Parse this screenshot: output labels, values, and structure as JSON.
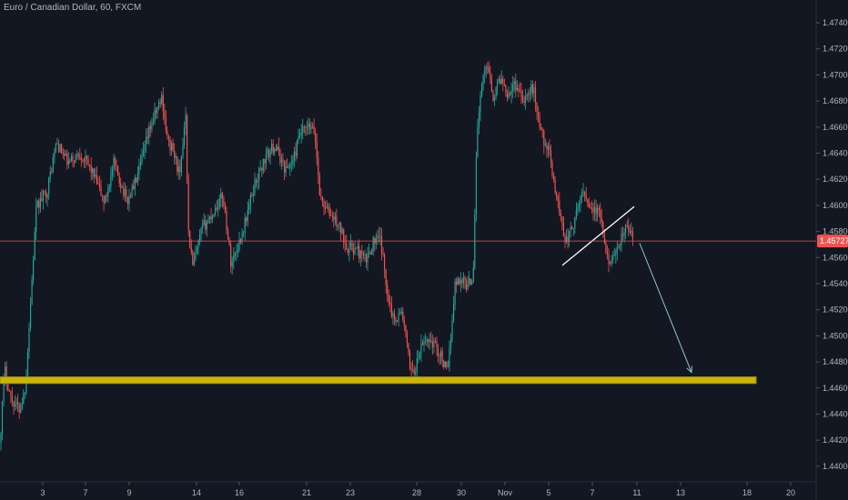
{
  "header": {
    "title": "Euro / Canadian Dollar, 60, FXCM"
  },
  "colors": {
    "background": "#131722",
    "up_candle": "#26a69a",
    "down_candle": "#ef5350",
    "support_zone": "#c9b30f",
    "arrow": "#90c7d4",
    "trendline": "#ffffff",
    "current_price_line": "#ef5350",
    "axis_text": "#b2b5be"
  },
  "chart_data": {
    "type": "candlestick",
    "title": "Euro / Canadian Dollar, 60, FXCM",
    "x_tick_labels": [
      "3",
      "7",
      "9",
      "14",
      "16",
      "21",
      "23",
      "28",
      "30",
      "Nov",
      "5",
      "7",
      "11",
      "13",
      "18",
      "20"
    ],
    "y_tick_labels": [
      "1.47400",
      "1.47200",
      "1.47000",
      "1.46800",
      "1.46600",
      "1.46400",
      "1.46200",
      "1.46000",
      "1.45800",
      "1.45600",
      "1.45400",
      "1.45200",
      "1.45000",
      "1.44800",
      "1.44600",
      "1.44400",
      "1.44200",
      "1.44000"
    ],
    "ylim": [
      1.4385,
      1.4754
    ],
    "current_price": 1.45727,
    "current_price_label": "1.45727",
    "price_path": [
      [
        0,
        1.4418
      ],
      [
        5,
        1.4475
      ],
      [
        12,
        1.4452
      ],
      [
        22,
        1.4443
      ],
      [
        28,
        1.4462
      ],
      [
        40,
        1.4598
      ],
      [
        52,
        1.4612
      ],
      [
        62,
        1.4648
      ],
      [
        75,
        1.4632
      ],
      [
        88,
        1.464
      ],
      [
        100,
        1.4628
      ],
      [
        115,
        1.4602
      ],
      [
        125,
        1.4632
      ],
      [
        140,
        1.4603
      ],
      [
        152,
        1.4624
      ],
      [
        165,
        1.466
      ],
      [
        178,
        1.4683
      ],
      [
        184,
        1.465
      ],
      [
        190,
        1.4642
      ],
      [
        198,
        1.4622
      ],
      [
        204,
        1.4674
      ],
      [
        207,
        1.458
      ],
      [
        212,
        1.4552
      ],
      [
        222,
        1.4582
      ],
      [
        232,
        1.4592
      ],
      [
        245,
        1.4608
      ],
      [
        254,
        1.4555
      ],
      [
        266,
        1.4578
      ],
      [
        280,
        1.4617
      ],
      [
        292,
        1.4637
      ],
      [
        302,
        1.4646
      ],
      [
        314,
        1.4627
      ],
      [
        322,
        1.4634
      ],
      [
        330,
        1.4655
      ],
      [
        340,
        1.466
      ],
      [
        346,
        1.4655
      ],
      [
        352,
        1.4605
      ],
      [
        362,
        1.4594
      ],
      [
        372,
        1.4585
      ],
      [
        382,
        1.4568
      ],
      [
        392,
        1.4566
      ],
      [
        402,
        1.4557
      ],
      [
        410,
        1.4572
      ],
      [
        418,
        1.4574
      ],
      [
        425,
        1.4537
      ],
      [
        432,
        1.4513
      ],
      [
        442,
        1.4518
      ],
      [
        450,
        1.4478
      ],
      [
        456,
        1.4472
      ],
      [
        462,
        1.449
      ],
      [
        470,
        1.4498
      ],
      [
        478,
        1.4493
      ],
      [
        486,
        1.4483
      ],
      [
        492,
        1.447
      ],
      [
        500,
        1.454
      ],
      [
        508,
        1.4544
      ],
      [
        514,
        1.4538
      ],
      [
        520,
        1.4547
      ],
      [
        524,
        1.4655
      ],
      [
        530,
        1.4695
      ],
      [
        536,
        1.471
      ],
      [
        542,
        1.4683
      ],
      [
        550,
        1.4698
      ],
      [
        558,
        1.4686
      ],
      [
        566,
        1.4693
      ],
      [
        576,
        1.4682
      ],
      [
        586,
        1.469
      ],
      [
        594,
        1.4658
      ],
      [
        604,
        1.4638
      ],
      [
        614,
        1.4598
      ],
      [
        622,
        1.4572
      ],
      [
        632,
        1.4588
      ],
      [
        640,
        1.4612
      ],
      [
        650,
        1.4598
      ],
      [
        660,
        1.4592
      ],
      [
        666,
        1.456
      ],
      [
        676,
        1.4558
      ],
      [
        684,
        1.4578
      ],
      [
        690,
        1.4583
      ],
      [
        696,
        1.4574
      ]
    ],
    "annotations": [
      {
        "kind": "support_zone",
        "y_range": [
          1.44635,
          1.44685
        ],
        "x_range": [
          0,
          831
        ]
      },
      {
        "kind": "trendline",
        "from": [
          618,
          1.4554
        ],
        "to": [
          697,
          1.4599
        ]
      },
      {
        "kind": "arrow",
        "from": [
          703,
          1.4571
        ],
        "to": [
          760,
          1.4472
        ]
      }
    ],
    "grid": false,
    "legend": "none"
  }
}
